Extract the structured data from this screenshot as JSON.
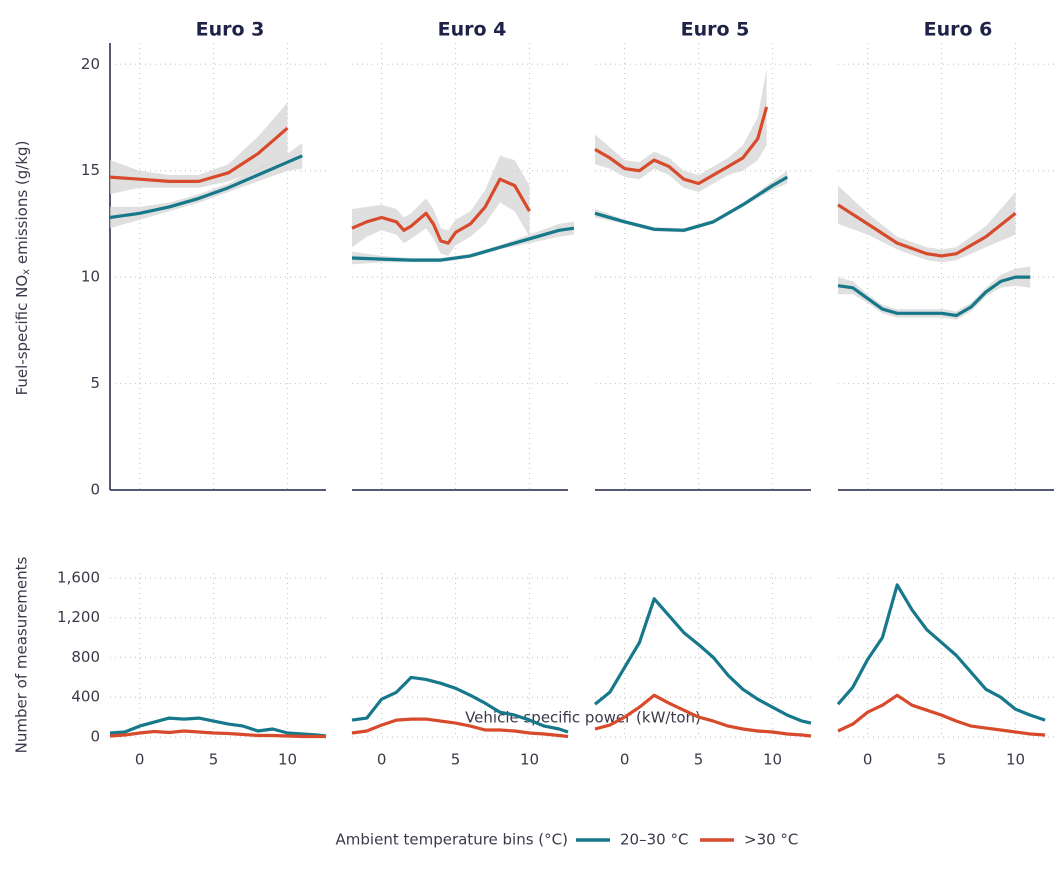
{
  "chart_data": {
    "type": "line",
    "x_label": "Vehicle specific power (kW/ton)",
    "legend_title": "Ambient temperature bins (°C)",
    "legend": [
      {
        "name": "20–30 °C",
        "color": "#16788a"
      },
      {
        "name": ">30 °C",
        "color": "#d84a2c"
      }
    ],
    "band_color": "#d4d4d4",
    "grid": true,
    "xlim": [
      -2,
      12.6
    ],
    "xticks": [
      0,
      5,
      10
    ],
    "top": {
      "y_label": [
        "Fuel-specific NO",
        "x",
        " emissions (g/kg)"
      ],
      "ylim": [
        0,
        21
      ],
      "yticks": [
        0,
        5,
        10,
        15,
        20
      ],
      "panels": [
        {
          "title": "Euro 3",
          "series": [
            {
              "x": [
                -2,
                0,
                2,
                4,
                6,
                8,
                10,
                11
              ],
              "values": [
                12.8,
                13.0,
                13.3,
                13.7,
                14.2,
                14.8,
                15.4,
                15.7
              ],
              "lower": [
                12.3,
                12.7,
                13.1,
                13.5,
                14.0,
                14.5,
                15.0,
                15.1
              ],
              "upper": [
                13.3,
                13.3,
                13.5,
                13.9,
                14.4,
                15.1,
                15.8,
                16.3
              ]
            },
            {
              "x": [
                -2,
                0,
                2,
                4,
                6,
                8,
                10
              ],
              "values": [
                14.7,
                14.6,
                14.5,
                14.5,
                14.9,
                15.8,
                17.0
              ],
              "lower": [
                13.9,
                14.2,
                14.2,
                14.2,
                14.5,
                15.0,
                15.8
              ],
              "upper": [
                15.5,
                15.0,
                14.8,
                14.8,
                15.3,
                16.6,
                18.2
              ]
            }
          ]
        },
        {
          "title": "Euro 4",
          "series": [
            {
              "x": [
                -2,
                0,
                2,
                4,
                6,
                8,
                10,
                12,
                13
              ],
              "values": [
                10.9,
                10.85,
                10.8,
                10.8,
                11.0,
                11.4,
                11.8,
                12.2,
                12.3
              ],
              "lower": [
                10.6,
                10.7,
                10.7,
                10.7,
                10.9,
                11.3,
                11.6,
                11.9,
                12.0
              ],
              "upper": [
                11.2,
                11.0,
                10.9,
                10.9,
                11.1,
                11.5,
                12.0,
                12.5,
                12.6
              ]
            },
            {
              "x": [
                -2,
                -1,
                0,
                1,
                1.5,
                2,
                3,
                3.5,
                4,
                4.5,
                5,
                6,
                7,
                8,
                9,
                10
              ],
              "values": [
                12.3,
                12.6,
                12.8,
                12.6,
                12.2,
                12.4,
                13.0,
                12.5,
                11.7,
                11.6,
                12.1,
                12.5,
                13.3,
                14.6,
                14.3,
                13.1
              ],
              "lower": [
                11.4,
                11.9,
                12.2,
                12.0,
                11.6,
                11.8,
                12.3,
                11.8,
                11.1,
                11.0,
                11.5,
                11.9,
                12.5,
                13.5,
                13.1,
                11.9
              ],
              "upper": [
                13.2,
                13.3,
                13.4,
                13.2,
                12.8,
                13.0,
                13.7,
                13.2,
                12.3,
                12.2,
                12.7,
                13.1,
                14.1,
                15.7,
                15.5,
                14.3
              ]
            }
          ]
        },
        {
          "title": "Euro 5",
          "series": [
            {
              "x": [
                -2,
                0,
                2,
                4,
                6,
                8,
                10,
                11
              ],
              "values": [
                13.0,
                12.6,
                12.25,
                12.2,
                12.6,
                13.4,
                14.3,
                14.7
              ],
              "lower": [
                12.8,
                12.5,
                12.15,
                12.1,
                12.5,
                13.3,
                14.1,
                14.4
              ],
              "upper": [
                13.2,
                12.7,
                12.35,
                12.3,
                12.7,
                13.5,
                14.5,
                15.0
              ]
            },
            {
              "x": [
                -2,
                -1,
                0,
                1,
                2,
                3,
                4,
                5,
                6,
                7,
                8,
                9,
                9.6
              ],
              "values": [
                16.0,
                15.6,
                15.1,
                15.0,
                15.5,
                15.2,
                14.6,
                14.4,
                14.8,
                15.2,
                15.6,
                16.5,
                18.0
              ],
              "lower": [
                15.3,
                15.1,
                14.7,
                14.6,
                15.1,
                14.8,
                14.2,
                14.0,
                14.4,
                14.8,
                15.0,
                15.5,
                16.2
              ],
              "upper": [
                16.7,
                16.1,
                15.5,
                15.4,
                15.9,
                15.6,
                15.0,
                14.8,
                15.2,
                15.6,
                16.2,
                17.5,
                19.8
              ]
            }
          ]
        },
        {
          "title": "Euro 6",
          "series": [
            {
              "x": [
                -2,
                -1,
                0,
                1,
                2,
                4,
                5,
                6,
                7,
                8,
                9,
                10,
                11
              ],
              "values": [
                9.6,
                9.5,
                9.0,
                8.5,
                8.3,
                8.3,
                8.3,
                8.2,
                8.6,
                9.3,
                9.8,
                10.0,
                10.0
              ],
              "lower": [
                9.2,
                9.2,
                8.8,
                8.3,
                8.1,
                8.1,
                8.1,
                8.0,
                8.4,
                9.1,
                9.5,
                9.6,
                9.5
              ],
              "upper": [
                10.0,
                9.8,
                9.2,
                8.7,
                8.5,
                8.5,
                8.5,
                8.4,
                8.8,
                9.5,
                10.1,
                10.4,
                10.5
              ]
            },
            {
              "x": [
                -2,
                0,
                2,
                4,
                5,
                6,
                8,
                10
              ],
              "values": [
                13.4,
                12.5,
                11.6,
                11.1,
                11.0,
                11.1,
                11.9,
                13.0
              ],
              "lower": [
                12.5,
                12.0,
                11.3,
                10.8,
                10.7,
                10.8,
                11.4,
                12.0
              ],
              "upper": [
                14.3,
                13.0,
                11.9,
                11.4,
                11.3,
                11.4,
                12.4,
                14.0
              ]
            }
          ]
        }
      ]
    },
    "bottom": {
      "y_label": "Number of measurements",
      "ylim": [
        0,
        1650
      ],
      "yticks": [
        0,
        400,
        800,
        {
          "value": 1200,
          "label": "1,200"
        },
        {
          "value": 1600,
          "label": "1,600"
        }
      ],
      "panels": [
        {
          "series": [
            {
              "x": [
                -2,
                -1,
                0,
                1,
                2,
                3,
                4,
                5,
                6,
                7,
                8,
                9,
                10,
                11,
                12,
                12.6
              ],
              "values": [
                40,
                50,
                110,
                150,
                190,
                180,
                190,
                160,
                130,
                110,
                60,
                80,
                40,
                30,
                20,
                10
              ]
            },
            {
              "x": [
                -2,
                -1,
                0,
                1,
                2,
                3,
                4,
                5,
                6,
                7,
                8,
                9,
                10,
                11,
                12,
                12.6
              ],
              "values": [
                10,
                20,
                40,
                55,
                45,
                60,
                50,
                40,
                35,
                25,
                15,
                15,
                10,
                5,
                5,
                5
              ]
            }
          ]
        },
        {
          "series": [
            {
              "x": [
                -2,
                -1,
                0,
                1,
                2,
                3,
                4,
                5,
                6,
                7,
                8,
                9,
                10,
                11,
                12,
                12.6
              ],
              "values": [
                170,
                190,
                380,
                450,
                600,
                580,
                540,
                490,
                420,
                340,
                250,
                220,
                170,
                110,
                80,
                50
              ]
            },
            {
              "x": [
                -2,
                -1,
                0,
                1,
                2,
                3,
                4,
                5,
                6,
                7,
                8,
                9,
                10,
                11,
                12,
                12.6
              ],
              "values": [
                40,
                60,
                120,
                170,
                180,
                180,
                160,
                140,
                110,
                70,
                70,
                60,
                40,
                30,
                15,
                5
              ]
            }
          ]
        },
        {
          "series": [
            {
              "x": [
                -2,
                -1,
                0,
                1,
                2,
                3,
                4,
                5,
                6,
                7,
                8,
                9,
                10,
                11,
                12,
                12.6
              ],
              "values": [
                330,
                450,
                700,
                950,
                1390,
                1220,
                1050,
                930,
                800,
                620,
                480,
                380,
                300,
                220,
                160,
                140
              ]
            },
            {
              "x": [
                -2,
                -1,
                0,
                1,
                2,
                3,
                4,
                5,
                6,
                7,
                8,
                9,
                10,
                11,
                12,
                12.6
              ],
              "values": [
                80,
                120,
                200,
                300,
                420,
                340,
                270,
                200,
                160,
                110,
                80,
                60,
                50,
                30,
                20,
                10
              ]
            }
          ]
        },
        {
          "series": [
            {
              "x": [
                -2,
                -1,
                0,
                1,
                2,
                3,
                4,
                5,
                6,
                7,
                8,
                9,
                10,
                11,
                12
              ],
              "values": [
                330,
                500,
                780,
                1000,
                1530,
                1280,
                1080,
                950,
                820,
                650,
                480,
                400,
                280,
                220,
                170
              ]
            },
            {
              "x": [
                -2,
                -1,
                0,
                1,
                2,
                3,
                4,
                5,
                6,
                7,
                8,
                9,
                10,
                11,
                12
              ],
              "values": [
                60,
                130,
                250,
                320,
                420,
                320,
                270,
                220,
                160,
                110,
                90,
                70,
                50,
                30,
                20
              ]
            }
          ]
        }
      ]
    }
  }
}
